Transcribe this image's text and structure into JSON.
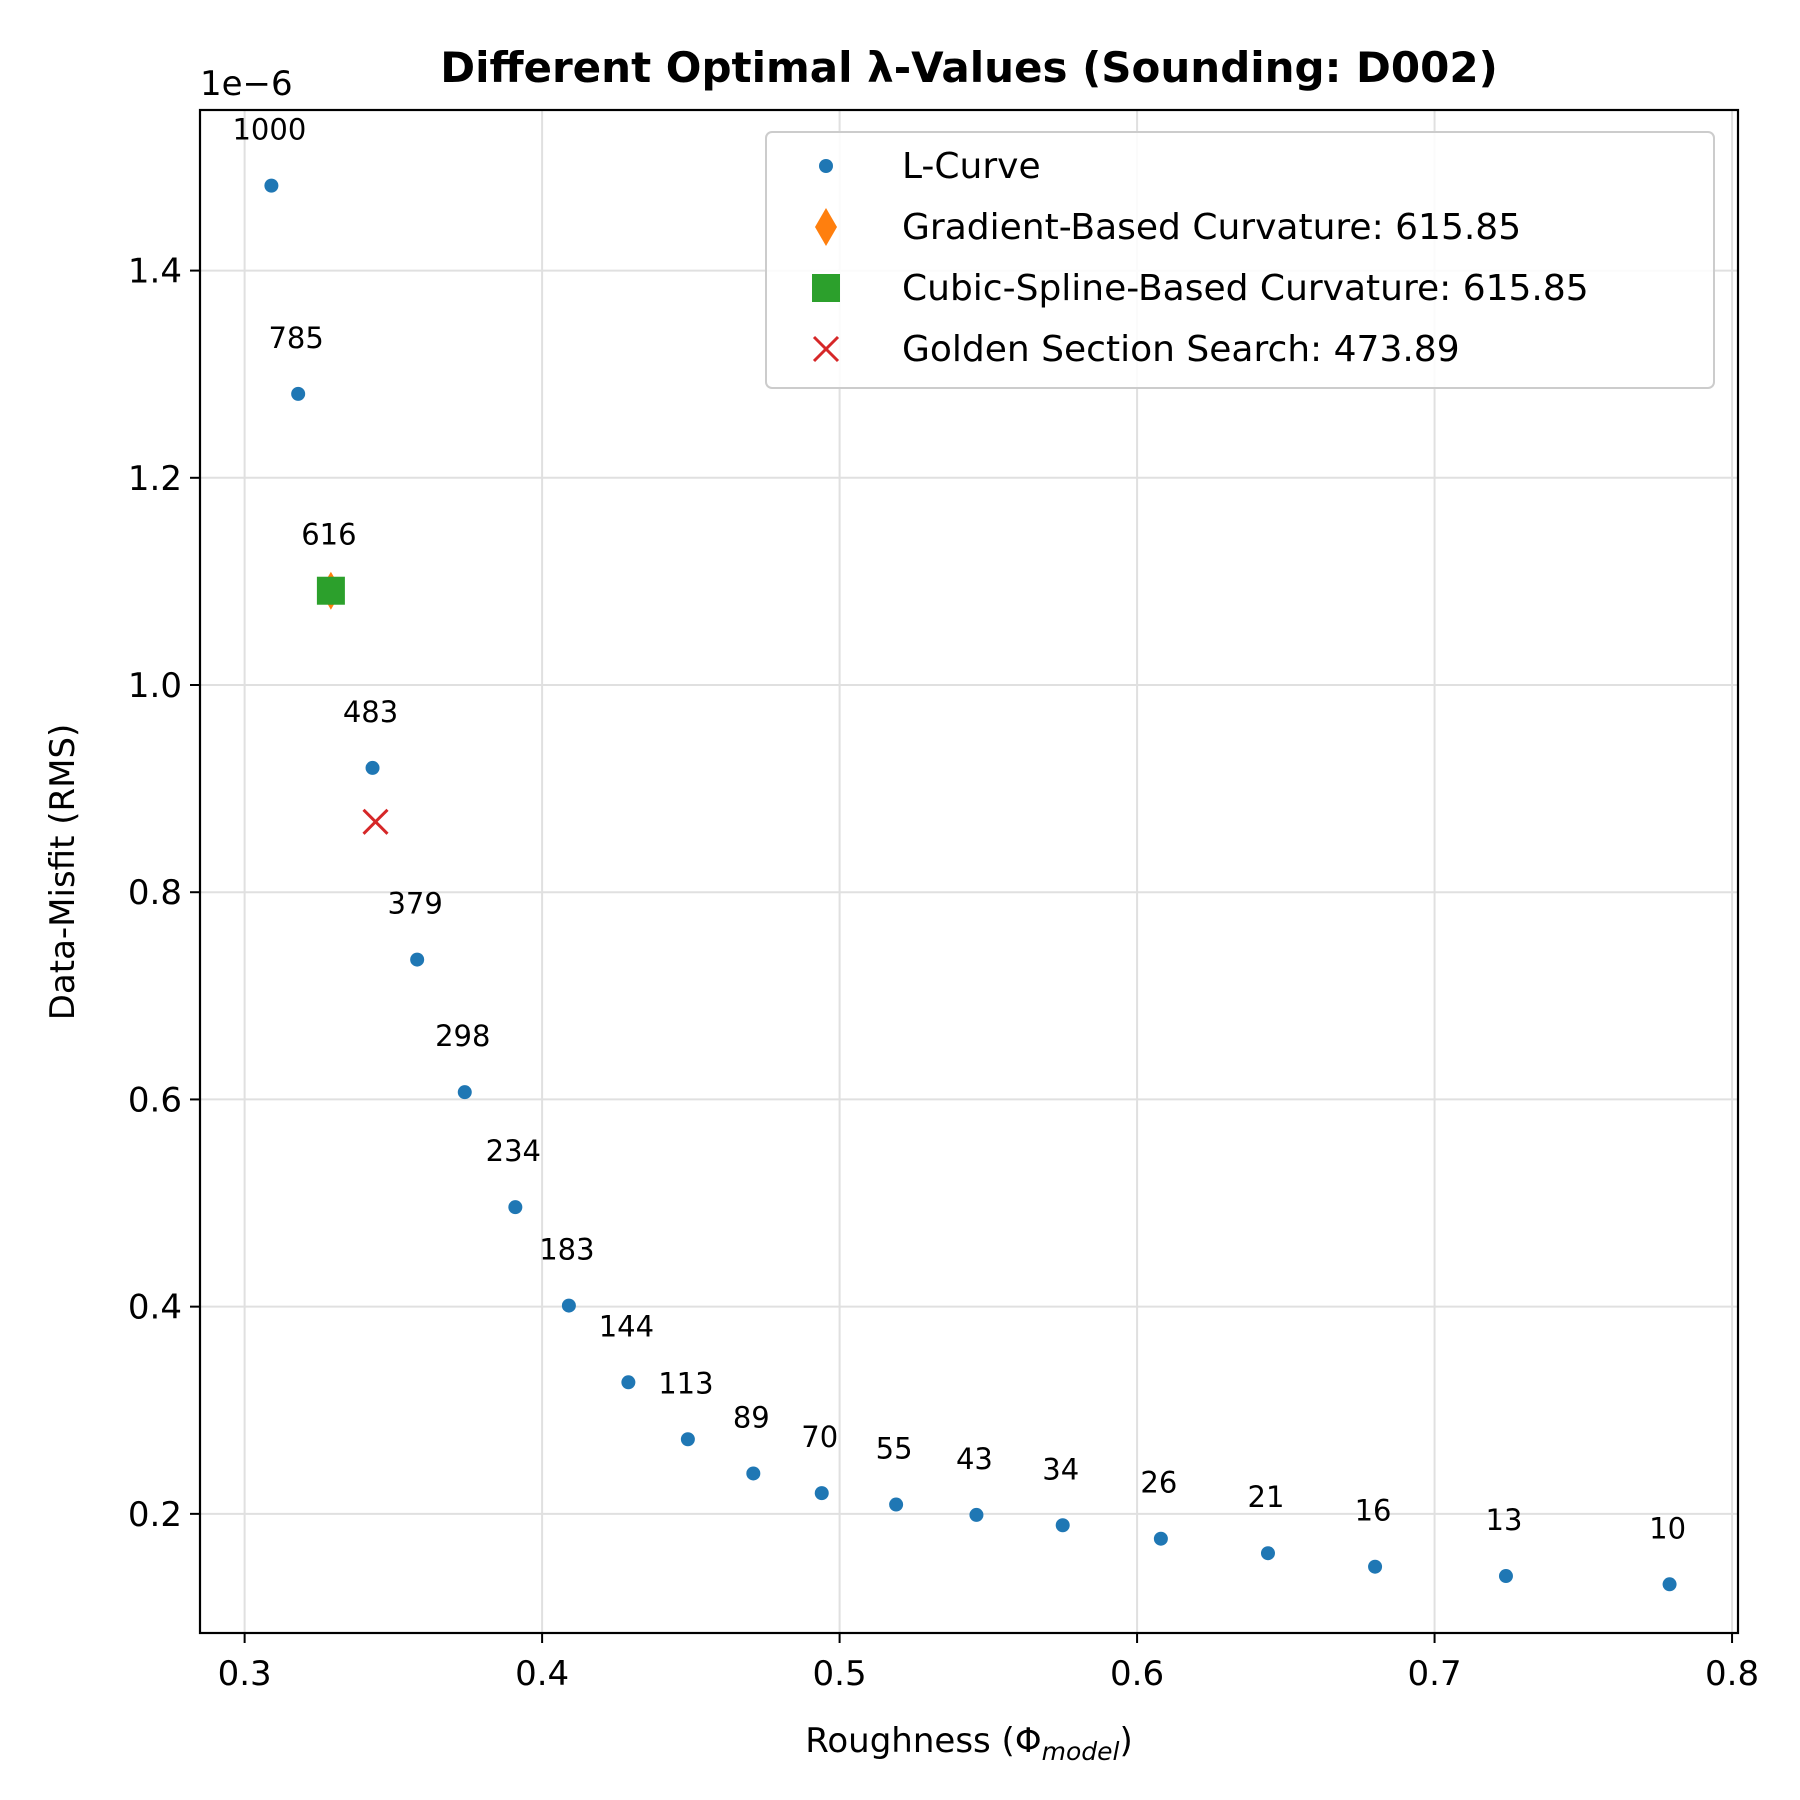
{
  "chart_data": {
    "type": "scatter",
    "title": "Different Optimal λ-Values (Sounding: D002)",
    "xlabel": "Roughness (Φ",
    "xlabel_sub": "model",
    "xlabel_close": ")",
    "ylabel": "Data-Misfit (RMS)",
    "y_offset_label": "1e−6",
    "xlim": [
      0.285,
      0.802
    ],
    "ylim": [
      0.085,
      1.555
    ],
    "x_ticks": [
      0.3,
      0.4,
      0.5,
      0.6,
      0.7,
      0.8
    ],
    "x_tick_labels": [
      "0.3",
      "0.4",
      "0.5",
      "0.6",
      "0.7",
      "0.8"
    ],
    "y_ticks": [
      0.2,
      0.4,
      0.6,
      0.8,
      1.0,
      1.2,
      1.4
    ],
    "y_tick_labels": [
      "0.2",
      "0.4",
      "0.6",
      "0.8",
      "1.0",
      "1.2",
      "1.4"
    ],
    "grid": true,
    "legend_position": "top-right",
    "colors": {
      "l_curve": "#1f77b4",
      "gradient": "#ff7f0e",
      "spline": "#2ca02c",
      "golden": "#d62728"
    },
    "series": [
      {
        "name": "L-Curve",
        "marker": "dot",
        "points": [
          {
            "label": "1000",
            "x": 0.309,
            "y": 1.482
          },
          {
            "label": "785",
            "x": 0.318,
            "y": 1.281
          },
          {
            "label": "616",
            "x": 0.329,
            "y": 1.091
          },
          {
            "label": "483",
            "x": 0.343,
            "y": 0.92
          },
          {
            "label": "379",
            "x": 0.358,
            "y": 0.735
          },
          {
            "label": "298",
            "x": 0.374,
            "y": 0.607
          },
          {
            "label": "234",
            "x": 0.391,
            "y": 0.496
          },
          {
            "label": "183",
            "x": 0.409,
            "y": 0.401
          },
          {
            "label": "144",
            "x": 0.429,
            "y": 0.327
          },
          {
            "label": "113",
            "x": 0.449,
            "y": 0.272
          },
          {
            "label": "89",
            "x": 0.471,
            "y": 0.239
          },
          {
            "label": "70",
            "x": 0.494,
            "y": 0.22
          },
          {
            "label": "55",
            "x": 0.519,
            "y": 0.209
          },
          {
            "label": "43",
            "x": 0.546,
            "y": 0.199
          },
          {
            "label": "34",
            "x": 0.575,
            "y": 0.189
          },
          {
            "label": "26",
            "x": 0.608,
            "y": 0.176
          },
          {
            "label": "21",
            "x": 0.644,
            "y": 0.162
          },
          {
            "label": "16",
            "x": 0.68,
            "y": 0.149
          },
          {
            "label": "13",
            "x": 0.724,
            "y": 0.14
          },
          {
            "label": "10",
            "x": 0.779,
            "y": 0.132
          }
        ]
      },
      {
        "name": "Gradient-Based Curvature: 615.85",
        "marker": "diamond",
        "points": [
          {
            "x": 0.329,
            "y": 1.091
          }
        ]
      },
      {
        "name": "Cubic-Spline-Based Curvature: 615.85",
        "marker": "square",
        "points": [
          {
            "x": 0.329,
            "y": 1.091
          }
        ]
      },
      {
        "name": "Golden Section Search: 473.89",
        "marker": "x",
        "points": [
          {
            "x": 0.344,
            "y": 0.868
          }
        ]
      }
    ]
  }
}
